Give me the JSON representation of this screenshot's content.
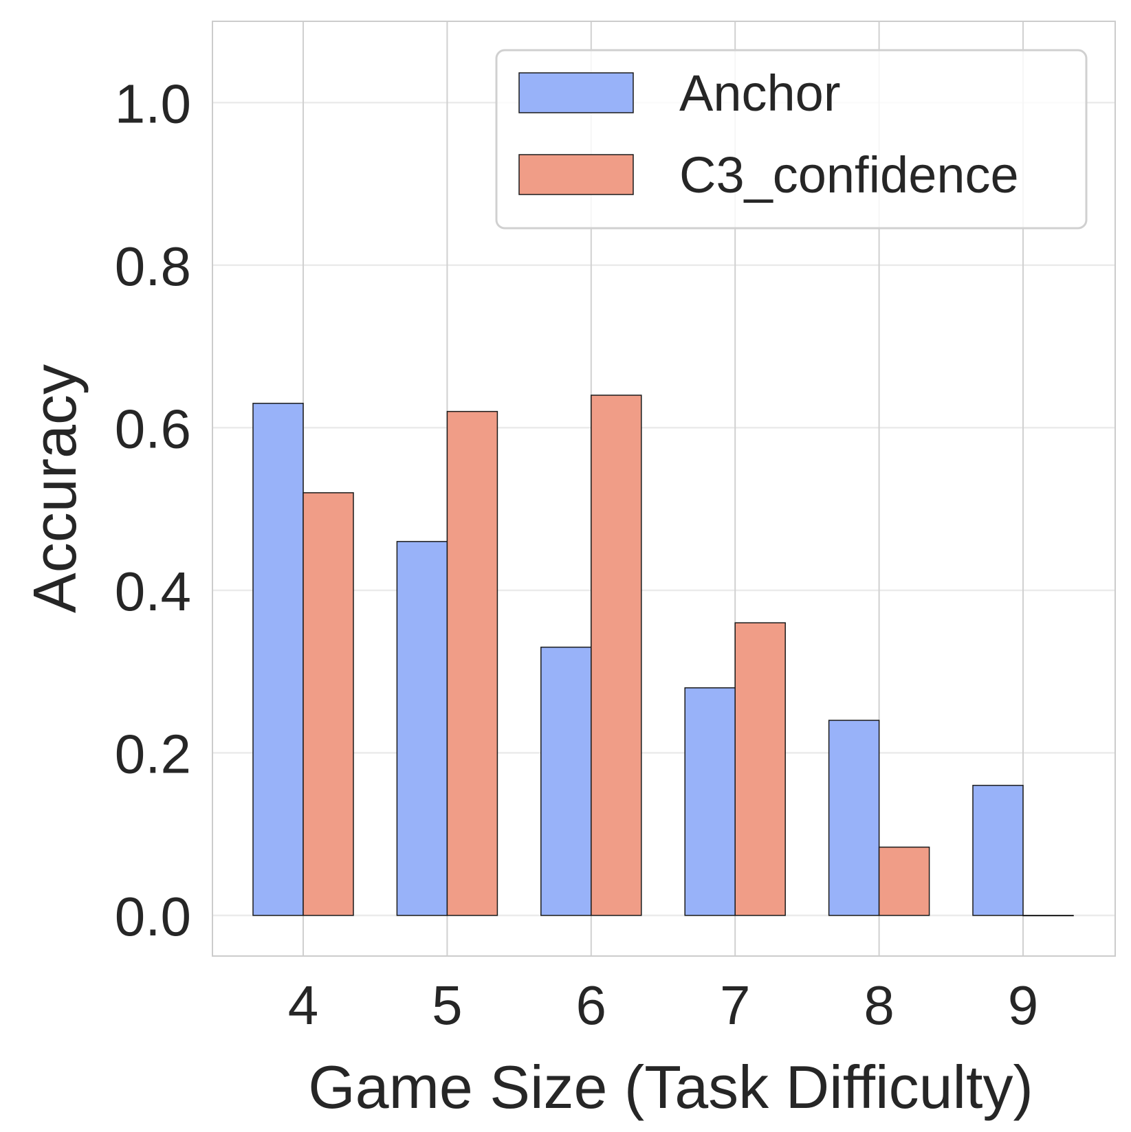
{
  "chart_data": {
    "type": "bar",
    "xlabel": "Game Size (Task Difficulty)",
    "ylabel": "Accuracy",
    "categories": [
      "4",
      "5",
      "6",
      "7",
      "8",
      "9"
    ],
    "series": [
      {
        "name": "Anchor",
        "color": "#98b2f9",
        "values": [
          0.63,
          0.46,
          0.33,
          0.28,
          0.24,
          0.16
        ]
      },
      {
        "name": "C3_confidence",
        "color": "#f09d87",
        "values": [
          0.52,
          0.62,
          0.64,
          0.36,
          0.084,
          0.0
        ]
      }
    ],
    "ylim": [
      -0.05,
      1.1
    ],
    "yticks": [
      "0.0",
      "0.2",
      "0.4",
      "0.6",
      "0.8",
      "1.0"
    ],
    "grid": true,
    "legend_position": "top-right"
  }
}
